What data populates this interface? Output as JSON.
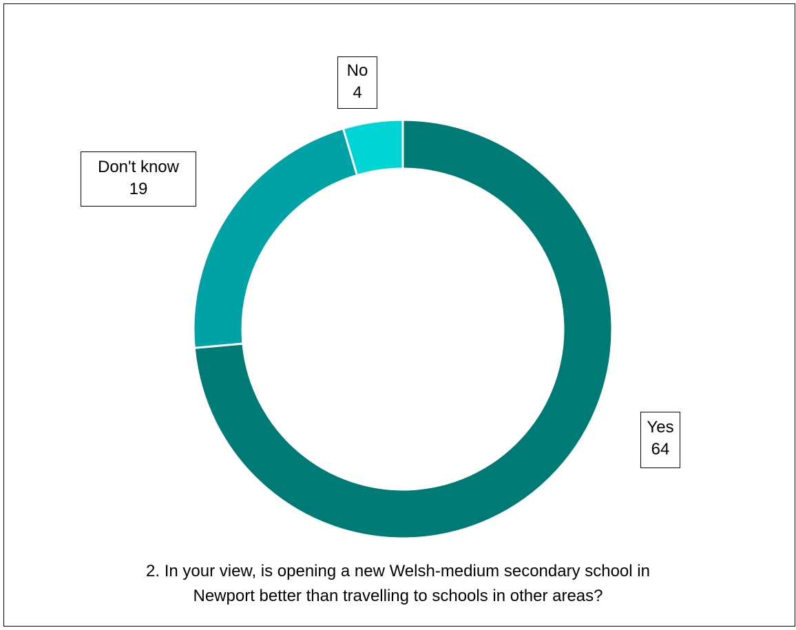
{
  "chart_data": {
    "type": "pie",
    "variant": "donut",
    "title_lines": [
      "2. In your view, is opening a new Welsh-medium secondary school in",
      "Newport better than travelling to schools in other areas?"
    ],
    "slices": [
      {
        "label": "Yes",
        "value": 64,
        "color": "#007A75"
      },
      {
        "label": "Don't know",
        "value": 19,
        "color": "#00A2A5"
      },
      {
        "label": "No",
        "value": 4,
        "color": "#00D4D4"
      }
    ],
    "legend": "none",
    "data_labels": "boxed outside, category and value"
  }
}
